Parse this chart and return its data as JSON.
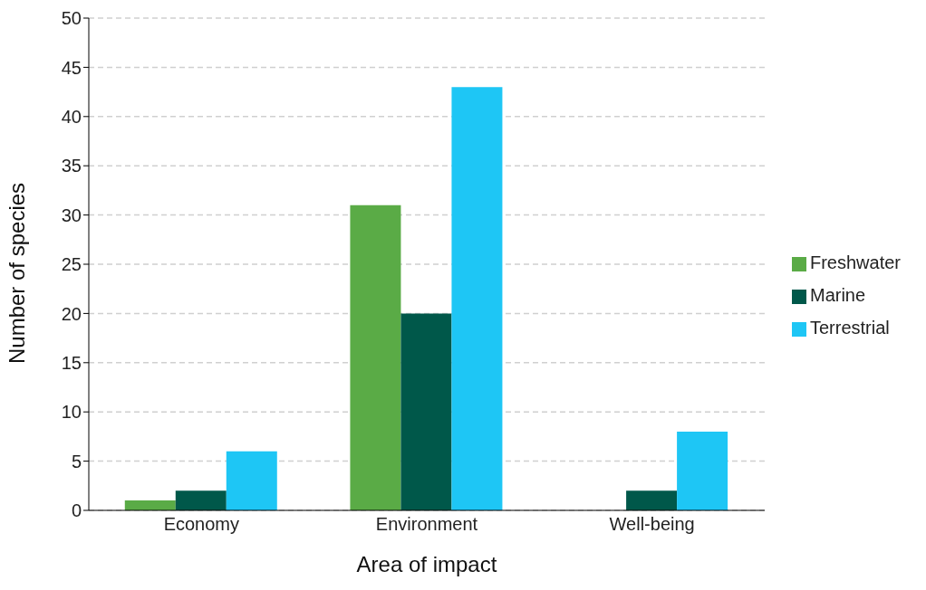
{
  "chart_data": {
    "type": "bar",
    "xlabel": "Area of impact",
    "ylabel": "Number of species",
    "categories": [
      "Economy",
      "Environment",
      "Well-being"
    ],
    "series": [
      {
        "name": "Freshwater",
        "color": "#5aab46",
        "values": [
          1,
          31,
          0
        ]
      },
      {
        "name": "Marine",
        "color": "#00584a",
        "values": [
          2,
          20,
          2
        ]
      },
      {
        "name": "Terrestrial",
        "color": "#1ec6f5",
        "values": [
          6,
          43,
          8
        ]
      }
    ],
    "ylim": [
      0,
      50
    ],
    "yticks": [
      0,
      5,
      10,
      15,
      20,
      25,
      30,
      35,
      40,
      45,
      50
    ],
    "grid": "y",
    "legend": "right"
  }
}
